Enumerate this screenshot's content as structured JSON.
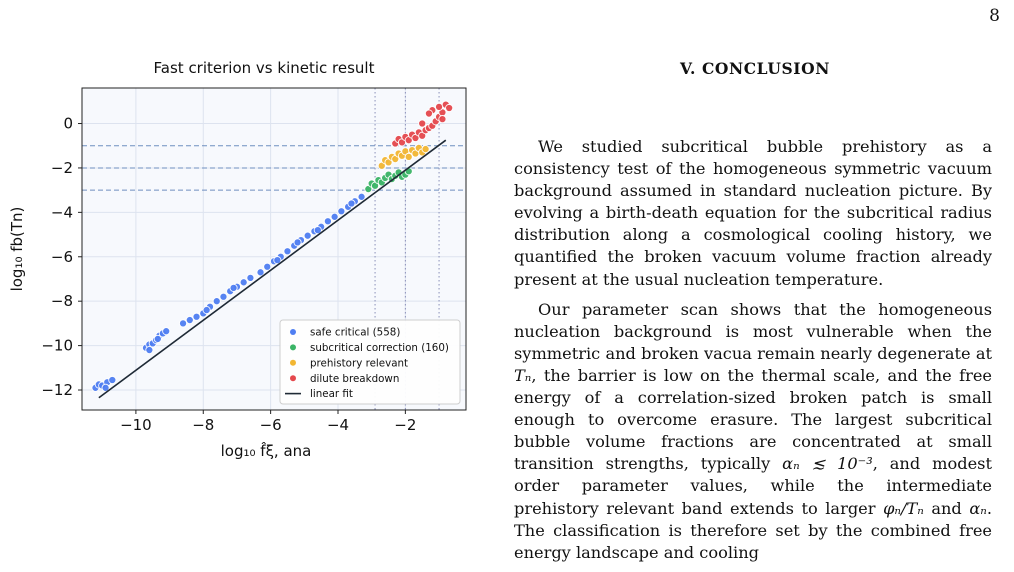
{
  "page": {
    "number": "8"
  },
  "section": {
    "heading": "V.   CONCLUSION"
  },
  "body": {
    "p1": "We studied subcritical bubble prehistory as a consistency test of the homogeneous symmetric vacuum background assumed in standard nucleation picture. By evolving a birth-death equation for the subcritical radius distribution along a cosmological cooling history, we quantified the broken vacuum volume fraction already present at the usual nucleation temperature.",
    "p2_a": "Our parameter scan shows that the homogeneous nucleation background is most vulnerable when the symmetric and broken vacua remain nearly degenerate at ",
    "p2_b": ", the barrier is low on the thermal scale, and the free energy of a correlation-sized broken patch is small enough to overcome erasure. The largest subcritical bubble volume fractions are concentrated at small transition strengths, typically ",
    "p2_c": ", and modest order parameter values, while the intermediate prehistory relevant band extends to larger ",
    "p2_d": " and ",
    "p2_e": ". The classification is therefore set by the combined free energy landscape and cooling",
    "math_Tn": "Tₙ",
    "math_alpha_bound": "αₙ ≲ 10⁻³",
    "math_phi_ratio": "φₙ/Tₙ",
    "math_alpha": "αₙ"
  },
  "chart_data": {
    "type": "scatter",
    "title": "Fast criterion vs kinetic result",
    "xlabel": "log₁₀ f̂ξ, ana",
    "ylabel": "log₁₀ fb(Tn)",
    "xlim": [
      -11.6,
      -0.2
    ],
    "ylim": [
      -12.9,
      1.6
    ],
    "xticks": [
      -10,
      -8,
      -6,
      -4,
      -2
    ],
    "yticks": [
      0,
      -2,
      -4,
      -6,
      -8,
      -10,
      -12
    ],
    "xtick_labels": [
      "−10",
      "−8",
      "−6",
      "−4",
      "−2"
    ],
    "ytick_labels": [
      "0",
      "−2",
      "−4",
      "−6",
      "−8",
      "−10",
      "−12"
    ],
    "grid": true,
    "legend_position": "lower-right",
    "horizontal_reference_lines": [
      -1,
      -2,
      -3
    ],
    "vertical_reference_lines": [
      -2.9,
      -2.0,
      -1.0
    ],
    "series": [
      {
        "name": "safe critical (558)",
        "color": "#4f7ef2",
        "points": [
          [
            -11.2,
            -11.9
          ],
          [
            -11.1,
            -11.75
          ],
          [
            -11.0,
            -11.8
          ],
          [
            -10.85,
            -11.65
          ],
          [
            -10.7,
            -11.55
          ],
          [
            -10.9,
            -11.9
          ],
          [
            -9.7,
            -10.1
          ],
          [
            -9.6,
            -9.95
          ],
          [
            -9.5,
            -9.9
          ],
          [
            -9.4,
            -9.75
          ],
          [
            -9.3,
            -9.55
          ],
          [
            -9.2,
            -9.45
          ],
          [
            -9.1,
            -9.35
          ],
          [
            -9.6,
            -10.2
          ],
          [
            -9.35,
            -9.7
          ],
          [
            -8.6,
            -9.0
          ],
          [
            -8.4,
            -8.85
          ],
          [
            -8.2,
            -8.7
          ],
          [
            -8.0,
            -8.55
          ],
          [
            -7.8,
            -8.25
          ],
          [
            -7.6,
            -8.0
          ],
          [
            -7.4,
            -7.8
          ],
          [
            -7.2,
            -7.55
          ],
          [
            -7.0,
            -7.35
          ],
          [
            -6.8,
            -7.15
          ],
          [
            -6.6,
            -6.95
          ],
          [
            -6.3,
            -6.7
          ],
          [
            -6.1,
            -6.45
          ],
          [
            -5.9,
            -6.2
          ],
          [
            -5.7,
            -6.0
          ],
          [
            -5.5,
            -5.75
          ],
          [
            -5.3,
            -5.5
          ],
          [
            -5.1,
            -5.25
          ],
          [
            -4.9,
            -5.05
          ],
          [
            -4.7,
            -4.85
          ],
          [
            -4.5,
            -4.65
          ],
          [
            -4.3,
            -4.4
          ],
          [
            -4.1,
            -4.2
          ],
          [
            -3.9,
            -3.95
          ],
          [
            -3.7,
            -3.75
          ],
          [
            -3.5,
            -3.5
          ],
          [
            -3.3,
            -3.3
          ],
          [
            -7.9,
            -8.4
          ],
          [
            -7.1,
            -7.4
          ],
          [
            -5.8,
            -6.15
          ],
          [
            -5.2,
            -5.35
          ],
          [
            -4.6,
            -4.8
          ],
          [
            -3.6,
            -3.6
          ]
        ]
      },
      {
        "name": "subcritical correction (160)",
        "color": "#3ab466",
        "points": [
          [
            -3.1,
            -2.95
          ],
          [
            -3.0,
            -2.7
          ],
          [
            -2.9,
            -2.8
          ],
          [
            -2.8,
            -2.55
          ],
          [
            -2.7,
            -2.65
          ],
          [
            -2.6,
            -2.45
          ],
          [
            -2.5,
            -2.3
          ],
          [
            -2.4,
            -2.5
          ],
          [
            -2.3,
            -2.35
          ],
          [
            -2.2,
            -2.2
          ],
          [
            -2.1,
            -2.4
          ],
          [
            -2.0,
            -2.3
          ],
          [
            -1.9,
            -2.15
          ]
        ]
      },
      {
        "name": "prehistory relevant",
        "color": "#f2b632",
        "points": [
          [
            -2.7,
            -1.9
          ],
          [
            -2.6,
            -1.65
          ],
          [
            -2.5,
            -1.75
          ],
          [
            -2.4,
            -1.5
          ],
          [
            -2.3,
            -1.6
          ],
          [
            -2.2,
            -1.35
          ],
          [
            -2.1,
            -1.45
          ],
          [
            -2.0,
            -1.25
          ],
          [
            -1.9,
            -1.5
          ],
          [
            -1.8,
            -1.2
          ],
          [
            -1.7,
            -1.35
          ],
          [
            -1.6,
            -1.1
          ],
          [
            -1.5,
            -1.3
          ],
          [
            -1.4,
            -1.15
          ]
        ]
      },
      {
        "name": "dilute breakdown",
        "color": "#e5484d",
        "points": [
          [
            -2.3,
            -0.9
          ],
          [
            -2.2,
            -0.7
          ],
          [
            -2.1,
            -0.85
          ],
          [
            -2.0,
            -0.6
          ],
          [
            -1.9,
            -0.75
          ],
          [
            -1.8,
            -0.5
          ],
          [
            -1.7,
            -0.65
          ],
          [
            -1.6,
            -0.4
          ],
          [
            -1.5,
            -0.55
          ],
          [
            -1.4,
            -0.3
          ],
          [
            -1.3,
            -0.2
          ],
          [
            -1.2,
            -0.1
          ],
          [
            -1.1,
            0.1
          ],
          [
            -1.0,
            0.3
          ],
          [
            -0.9,
            0.5
          ],
          [
            -1.2,
            0.6
          ],
          [
            -1.0,
            0.75
          ],
          [
            -0.8,
            0.85
          ],
          [
            -0.7,
            0.7
          ],
          [
            -1.3,
            0.45
          ],
          [
            -0.9,
            0.2
          ],
          [
            -1.5,
            0.0
          ]
        ]
      }
    ],
    "fit": {
      "name": "linear fit",
      "color": "#1f2a36",
      "x": [
        -11.1,
        -0.8
      ],
      "y": [
        -12.35,
        -0.75
      ]
    }
  }
}
